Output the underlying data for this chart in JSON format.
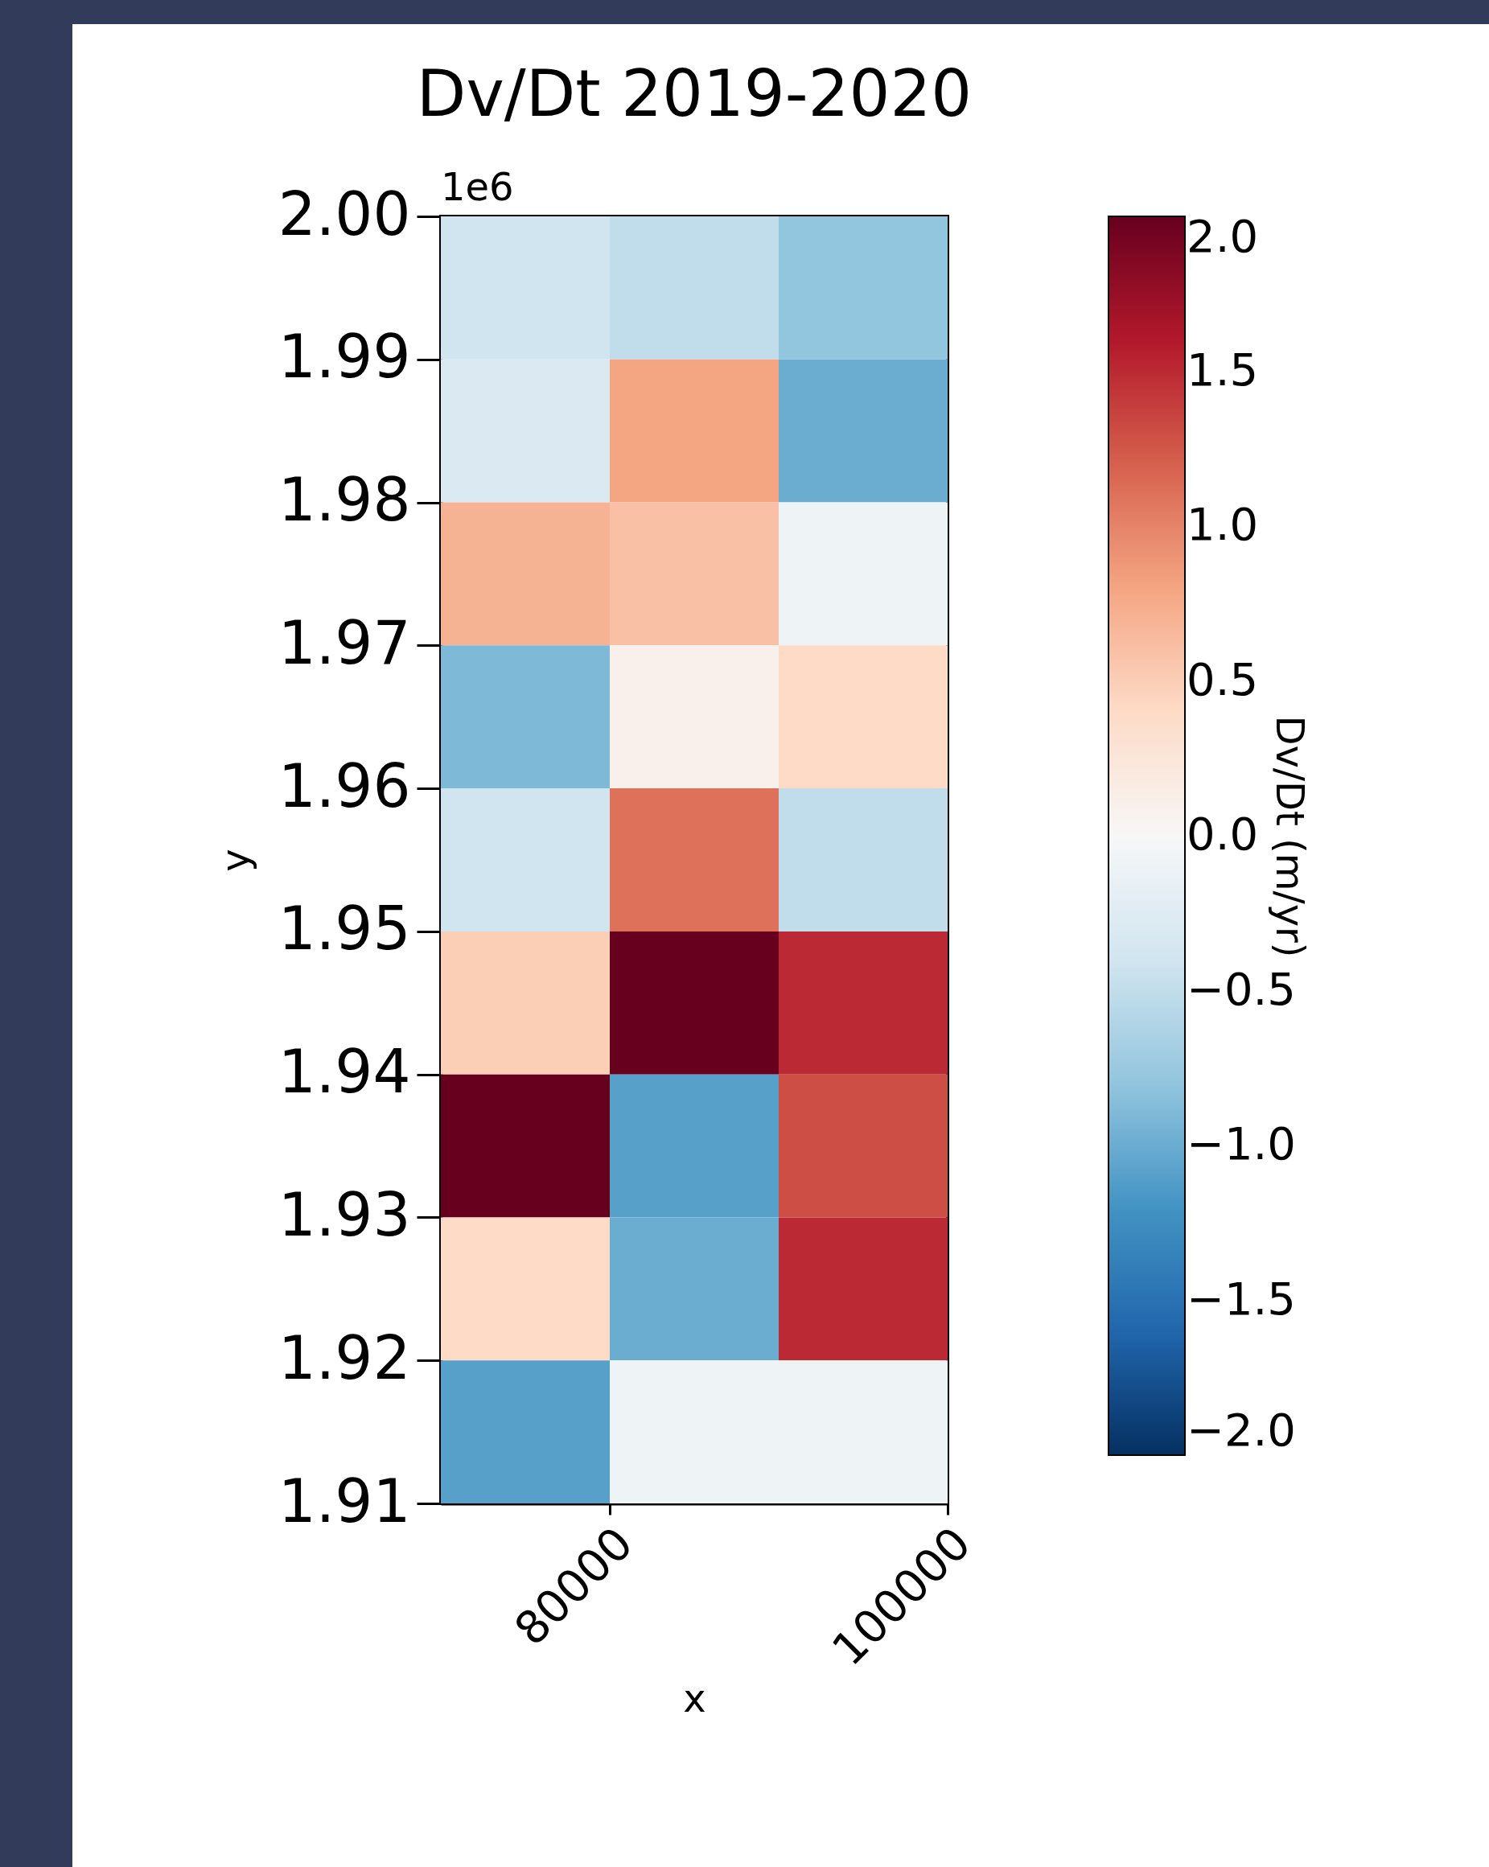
{
  "chart_data": {
    "type": "heatmap",
    "title": "Dv/Dt 2019-2020",
    "xlabel": "x",
    "ylabel": "y",
    "clabel": "Dv/Dt (m/yr)",
    "cells": [
      [
        -0.4,
        -0.5,
        -0.8
      ],
      [
        -0.3,
        0.8,
        -1.0
      ],
      [
        0.7,
        0.6,
        -0.1
      ],
      [
        -0.9,
        0.1,
        0.4
      ],
      [
        -0.4,
        1.1,
        -0.5
      ],
      [
        0.5,
        2.0,
        1.5
      ],
      [
        2.0,
        -1.1,
        1.3
      ],
      [
        0.4,
        -1.0,
        1.5
      ],
      [
        -1.1,
        -0.1,
        -0.1
      ]
    ],
    "xlim": [
      70000,
      100000
    ],
    "xticks": [
      80000,
      100000
    ],
    "ylim": [
      1.91,
      2.0
    ],
    "yticks": [
      1.91,
      1.92,
      1.93,
      1.94,
      1.95,
      1.96,
      1.97,
      1.98,
      1.99,
      {
        "value": 2,
        "label": "2.00"
      }
    ],
    "clim": [
      -2.0,
      2.0
    ],
    "cticks": [
      {
        "value": -2,
        "label": "−2.0"
      },
      {
        "value": -1.5,
        "label": "−1.5"
      },
      {
        "value": -1,
        "label": "−1.0"
      },
      {
        "value": -0.5,
        "label": "−0.5"
      },
      {
        "value": 0,
        "label": "0.0"
      },
      {
        "value": 0.5,
        "label": "0.5"
      },
      {
        "value": 1,
        "label": "1.0"
      },
      {
        "value": 1.5,
        "label": "1.5"
      },
      {
        "value": 2,
        "label": "2.0"
      }
    ],
    "annotations": [
      "1e6"
    ]
  }
}
